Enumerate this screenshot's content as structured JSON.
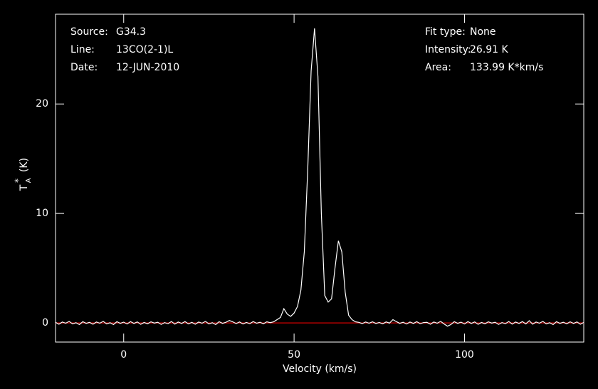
{
  "chart_data": {
    "type": "line",
    "xlabel": "Velocity (km/s)",
    "ylabel": {
      "symbol": "T",
      "subscript": "A",
      "superscript": "*",
      "unit": "(K)"
    },
    "info_left": [
      {
        "label": "Source:",
        "value": "G34.3"
      },
      {
        "label": "Line:",
        "value": "13CO(2-1)L"
      },
      {
        "label": "Date:",
        "value": "12-JUN-2010"
      }
    ],
    "info_right": [
      {
        "label": "Fit type:",
        "value": "None"
      },
      {
        "label": "Intensity:",
        "value": "26.91 K"
      },
      {
        "label": "Area:",
        "value": "133.99 K*km/s"
      }
    ],
    "xlim": [
      -20,
      135
    ],
    "ylim": [
      -1.75,
      28.2
    ],
    "xticks": [
      0,
      50,
      100
    ],
    "yticks": [
      0,
      10,
      20
    ],
    "baseline": 0,
    "baseline_color": "#b00000",
    "series": [
      {
        "color": "#ffffff",
        "x": [
          -20,
          -19,
          -18,
          -17,
          -16,
          -15,
          -14,
          -13,
          -12,
          -11,
          -10,
          -9,
          -8,
          -7,
          -6,
          -5,
          -4,
          -3,
          -2,
          -1,
          0,
          1,
          2,
          3,
          4,
          5,
          6,
          7,
          8,
          9,
          10,
          11,
          12,
          13,
          14,
          15,
          16,
          17,
          18,
          19,
          20,
          21,
          22,
          23,
          24,
          25,
          26,
          27,
          28,
          29,
          30,
          31,
          32,
          33,
          34,
          35,
          36,
          37,
          38,
          39,
          40,
          41,
          42,
          43,
          44,
          45,
          46,
          47,
          48,
          49,
          50,
          51,
          52,
          53,
          54,
          55,
          56,
          57,
          58,
          59,
          60,
          61,
          62,
          63,
          64,
          65,
          66,
          67,
          68,
          69,
          70,
          71,
          72,
          73,
          74,
          75,
          76,
          77,
          78,
          79,
          80,
          81,
          82,
          83,
          84,
          85,
          86,
          87,
          88,
          89,
          90,
          91,
          92,
          93,
          94,
          95,
          96,
          97,
          98,
          99,
          100,
          101,
          102,
          103,
          104,
          105,
          106,
          107,
          108,
          109,
          110,
          111,
          112,
          113,
          114,
          115,
          116,
          117,
          118,
          119,
          120,
          121,
          122,
          123,
          124,
          125,
          126,
          127,
          128,
          129,
          130,
          131,
          132,
          133,
          134,
          135
        ],
        "values": [
          0.05,
          -0.12,
          0.08,
          -0.03,
          0.14,
          -0.09,
          0.02,
          -0.15,
          0.11,
          -0.04,
          0.05,
          -0.12,
          0.08,
          -0.03,
          0.14,
          -0.09,
          0.02,
          -0.15,
          0.11,
          -0.04,
          0.07,
          -0.1,
          0.12,
          -0.05,
          0.09,
          -0.13,
          0.04,
          -0.08,
          0.1,
          -0.02,
          0.06,
          -0.14,
          0.03,
          -0.07,
          0.13,
          -0.11,
          0.08,
          -0.05,
          0.12,
          -0.09,
          0.05,
          -0.12,
          0.08,
          -0.03,
          0.14,
          -0.09,
          0.02,
          -0.15,
          0.11,
          -0.04,
          0.06,
          0.22,
          0.1,
          -0.06,
          0.09,
          -0.1,
          0.04,
          -0.07,
          0.12,
          -0.03,
          0.06,
          -0.08,
          0.1,
          0.02,
          0.1,
          0.3,
          0.5,
          1.3,
          0.8,
          0.6,
          0.9,
          1.5,
          3.0,
          6.5,
          14.0,
          23.0,
          26.91,
          22.5,
          10.0,
          2.5,
          1.9,
          2.2,
          5.0,
          7.5,
          6.5,
          2.8,
          0.7,
          0.3,
          0.1,
          0.05,
          -0.06,
          0.08,
          -0.03,
          0.1,
          -0.05,
          0.04,
          -0.08,
          0.09,
          -0.02,
          0.3,
          0.12,
          -0.04,
          0.06,
          -0.1,
          0.08,
          -0.05,
          0.11,
          -0.07,
          0.03,
          0.05,
          -0.12,
          0.08,
          -0.03,
          0.14,
          -0.09,
          -0.3,
          -0.15,
          0.11,
          -0.04,
          0.07,
          -0.1,
          0.12,
          -0.05,
          0.09,
          -0.13,
          0.04,
          -0.08,
          0.1,
          -0.02,
          0.06,
          -0.14,
          0.03,
          -0.07,
          0.13,
          -0.11,
          0.08,
          -0.05,
          0.12,
          -0.09,
          0.2,
          -0.12,
          0.08,
          -0.03,
          0.14,
          -0.09,
          0.02,
          -0.15,
          0.11,
          -0.04,
          0.06,
          -0.08,
          0.1,
          -0.05,
          0.09,
          -0.12,
          0.04
        ]
      }
    ]
  }
}
